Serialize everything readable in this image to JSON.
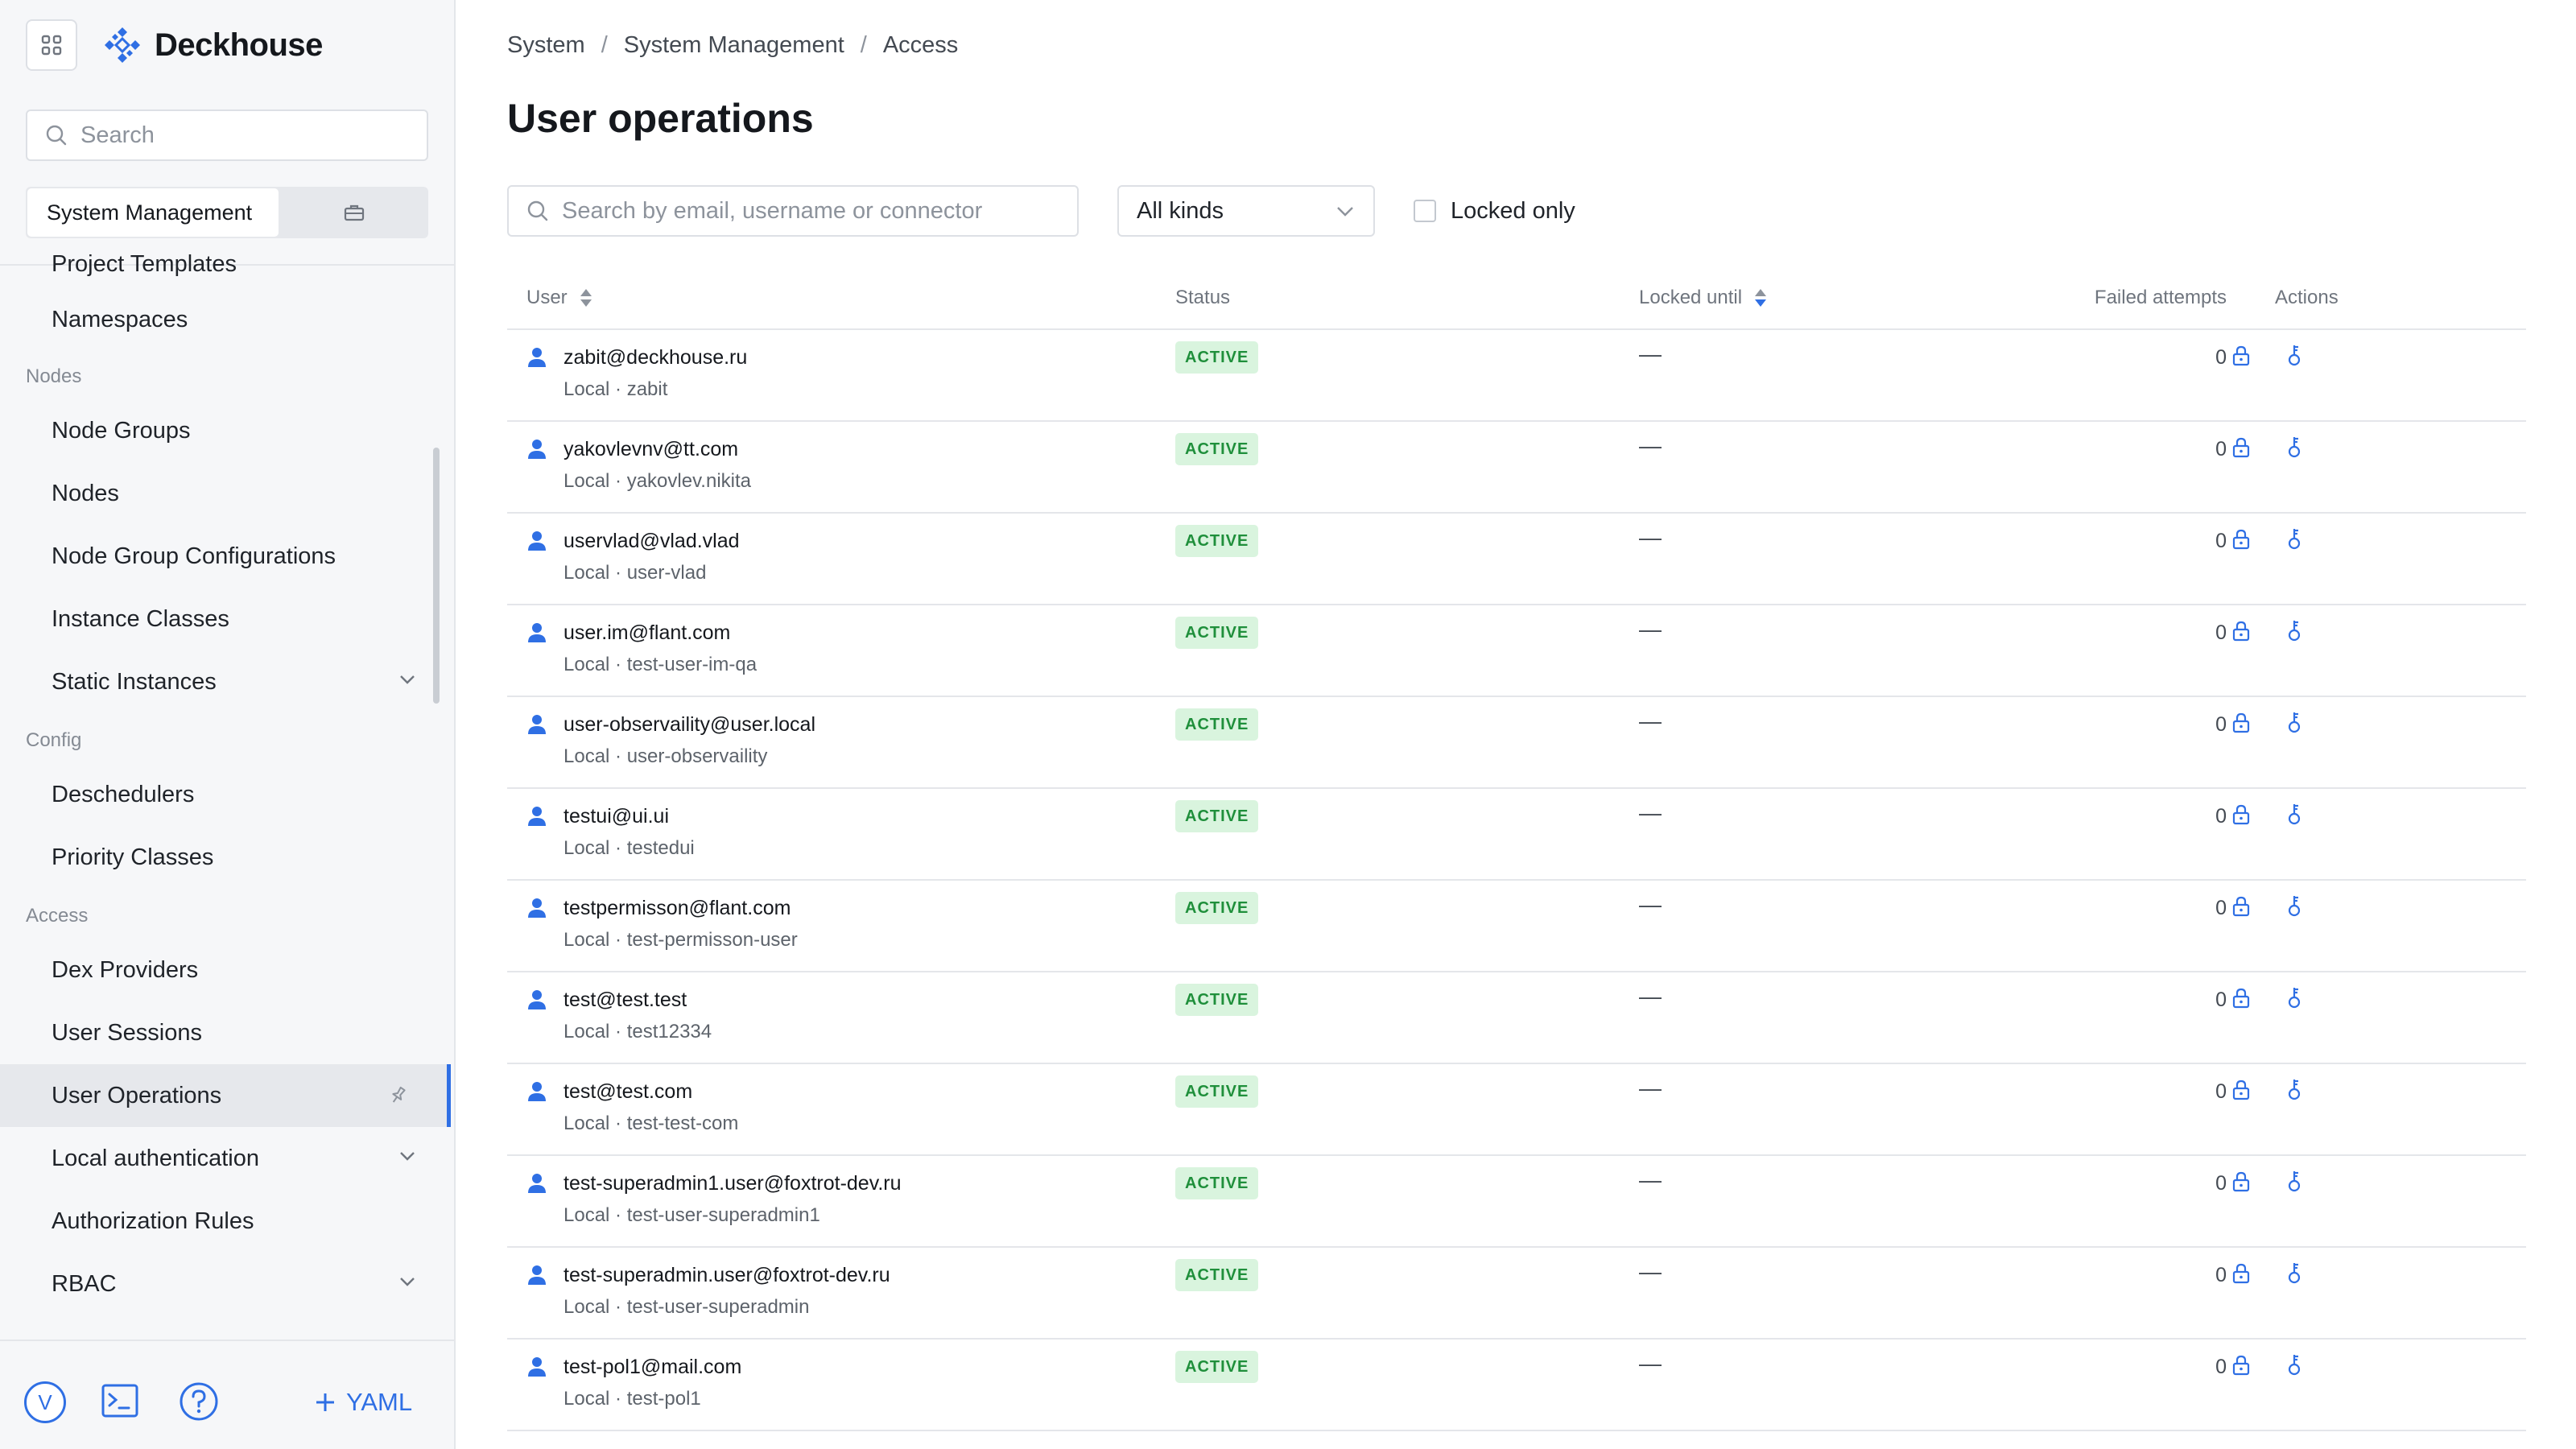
{
  "sidebar": {
    "logo_text": "Deckhouse",
    "search_placeholder": "Search",
    "context_label": "System Management",
    "partial_item": "Project Templates",
    "items": [
      {
        "label": "Namespaces"
      },
      {
        "group": "Nodes"
      },
      {
        "label": "Node Groups"
      },
      {
        "label": "Nodes"
      },
      {
        "label": "Node Group Configurations"
      },
      {
        "label": "Instance Classes"
      },
      {
        "label": "Static Instances"
      },
      {
        "group": "Config"
      },
      {
        "label": "Deschedulers"
      },
      {
        "label": "Priority Classes"
      },
      {
        "group": "Access"
      },
      {
        "label": "Dex Providers"
      },
      {
        "label": "User Sessions"
      },
      {
        "label": "User Operations"
      },
      {
        "label": "Local authentication"
      },
      {
        "label": "Authorization Rules"
      },
      {
        "label": "RBAC"
      }
    ],
    "avatar_letter": "V",
    "yaml_label": "YAML"
  },
  "breadcrumb": [
    "System",
    "System Management",
    "Access"
  ],
  "page_title": "User operations",
  "filters": {
    "search_placeholder": "Search by email, username or connector",
    "kind_value": "All kinds",
    "locked_only_label": "Locked only"
  },
  "table": {
    "headers": {
      "user": "User",
      "status": "Status",
      "locked_until": "Locked until",
      "failed_attempts": "Failed attempts",
      "actions": "Actions"
    },
    "rows": [
      {
        "email": "zabit@deckhouse.ru",
        "sub": "Local · zabit",
        "status": "ACTIVE",
        "locked": "—",
        "failed": "0"
      },
      {
        "email": "yakovlevnv@tt.com",
        "sub": "Local · yakovlev.nikita",
        "status": "ACTIVE",
        "locked": "—",
        "failed": "0"
      },
      {
        "email": "uservlad@vlad.vlad",
        "sub": "Local · user-vlad",
        "status": "ACTIVE",
        "locked": "—",
        "failed": "0"
      },
      {
        "email": "user.im@flant.com",
        "sub": "Local · test-user-im-qa",
        "status": "ACTIVE",
        "locked": "—",
        "failed": "0"
      },
      {
        "email": "user-observaility@user.local",
        "sub": "Local · user-observaility",
        "status": "ACTIVE",
        "locked": "—",
        "failed": "0"
      },
      {
        "email": "testui@ui.ui",
        "sub": "Local · testedui",
        "status": "ACTIVE",
        "locked": "—",
        "failed": "0"
      },
      {
        "email": "testpermisson@flant.com",
        "sub": "Local · test-permisson-user",
        "status": "ACTIVE",
        "locked": "—",
        "failed": "0"
      },
      {
        "email": "test@test.test",
        "sub": "Local · test12334",
        "status": "ACTIVE",
        "locked": "—",
        "failed": "0"
      },
      {
        "email": "test@test.com",
        "sub": "Local · test-test-com",
        "status": "ACTIVE",
        "locked": "—",
        "failed": "0"
      },
      {
        "email": "test-superadmin1.user@foxtrot-dev.ru",
        "sub": "Local · test-user-superadmin1",
        "status": "ACTIVE",
        "locked": "—",
        "failed": "0"
      },
      {
        "email": "test-superadmin.user@foxtrot-dev.ru",
        "sub": "Local · test-user-superadmin",
        "status": "ACTIVE",
        "locked": "—",
        "failed": "0"
      },
      {
        "email": "test-pol1@mail.com",
        "sub": "Local · test-pol1",
        "status": "ACTIVE",
        "locked": "—",
        "failed": "0"
      }
    ]
  },
  "colors": {
    "accent": "#2f6fe4",
    "active_badge_bg": "#d9f4de",
    "active_badge_text": "#1f8f3b"
  }
}
